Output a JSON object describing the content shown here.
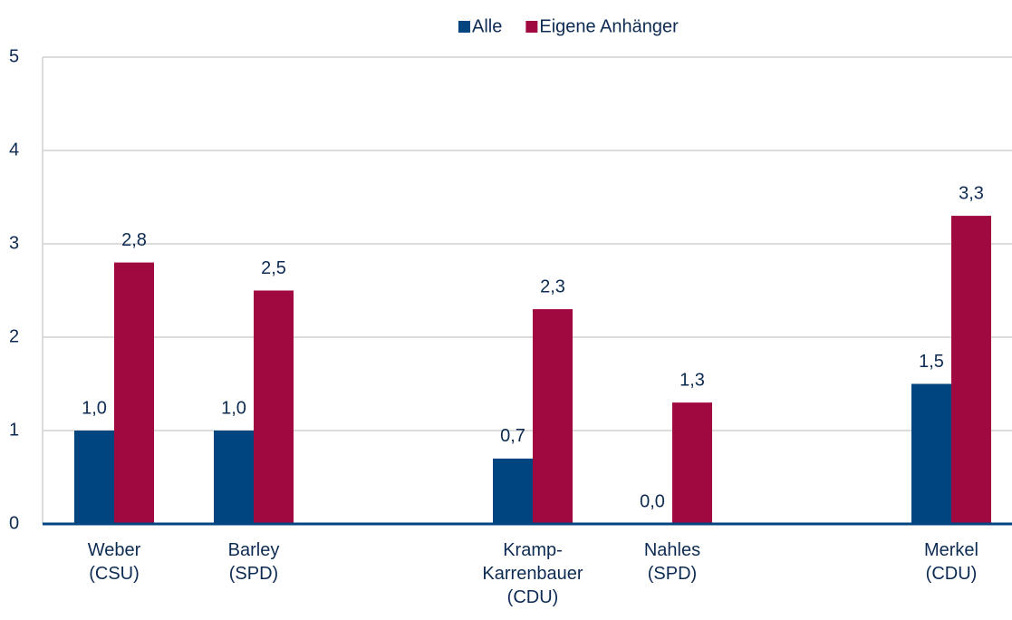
{
  "chart_data": {
    "type": "bar",
    "categories": [
      "Weber\n(CSU)",
      "Barley\n(SPD)",
      null,
      "Kramp-\nKarrenbauer\n(CDU)",
      "Nahles\n(SPD)",
      null,
      "Merkel\n(CDU)"
    ],
    "series": [
      {
        "name": "Alle",
        "color": "#004580",
        "values": [
          1.0,
          1.0,
          null,
          0.7,
          0.0,
          null,
          1.5
        ],
        "value_labels": [
          "1,0",
          "1,0",
          null,
          "0,7",
          "0,0",
          null,
          "1,5"
        ]
      },
      {
        "name": "Eigene Anhänger",
        "color": "#a0093f",
        "values": [
          2.8,
          2.5,
          null,
          2.3,
          1.3,
          null,
          3.3
        ],
        "value_labels": [
          "2,8",
          "2,5",
          null,
          "2,3",
          "1,3",
          null,
          "3,3"
        ]
      }
    ],
    "ylim": [
      0,
      5
    ],
    "yticks": [
      0,
      1,
      2,
      3,
      4,
      5
    ],
    "grid": true,
    "legend": "top"
  }
}
